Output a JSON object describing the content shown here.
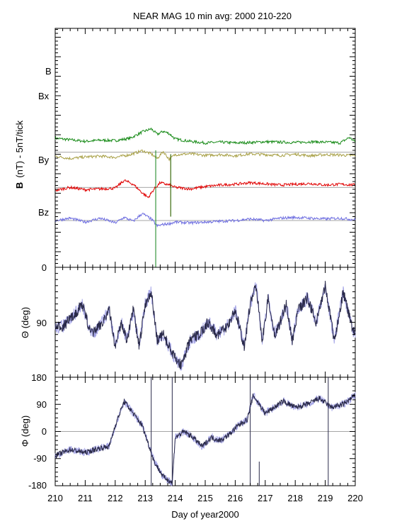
{
  "chart_data": [
    {
      "type": "line",
      "title": "NEAR MAG 10 min avg: 2000 210-220",
      "ylabel_bold": "B",
      "ylabel": "(nT) - 5nT/tick",
      "xlim": [
        210,
        220
      ],
      "y_tick_labels": [
        "0"
      ],
      "series": [
        {
          "name": "B",
          "color": "#1a8c1a",
          "x": [
            210,
            210.5,
            211,
            211.5,
            212,
            212.5,
            212.9,
            213.2,
            213.4,
            213.6,
            213.8,
            214,
            214.5,
            215,
            215.5,
            216,
            216.5,
            217,
            217.5,
            218,
            218.5,
            219,
            219.5,
            219.8,
            220
          ],
          "values": [
            0.6,
            0.2,
            -0.2,
            0.1,
            0.0,
            0.6,
            2.2,
            3.0,
            1.6,
            2.4,
            1.8,
            0.4,
            -0.2,
            -0.6,
            -0.4,
            -0.6,
            -0.5,
            -0.3,
            -0.4,
            -0.5,
            -0.3,
            -0.4,
            -0.6,
            0.8,
            -0.3
          ]
        },
        {
          "name": "Bx",
          "color": "#a8a046",
          "x": [
            210,
            210.5,
            211,
            211.5,
            212,
            212.5,
            212.9,
            213.2,
            213.4,
            213.6,
            213.8,
            214,
            214.5,
            215,
            215.5,
            216,
            216.5,
            217,
            217.5,
            218,
            218.5,
            219,
            219.5,
            220
          ],
          "values": [
            -1.0,
            -1.6,
            -1.2,
            -1.0,
            -1.3,
            -0.6,
            0.4,
            -0.4,
            -1.6,
            0.2,
            -1.8,
            -0.6,
            -0.4,
            -0.8,
            -0.6,
            -0.9,
            -0.4,
            -0.6,
            -0.8,
            -0.5,
            -0.9,
            -0.6,
            -0.7,
            -0.9
          ]
        },
        {
          "name": "By",
          "color": "#e00000",
          "x": [
            210,
            210.5,
            211,
            211.5,
            212,
            212.3,
            212.6,
            212.9,
            213.1,
            213.3,
            213.5,
            213.8,
            214,
            214.5,
            215,
            215.5,
            216,
            216.5,
            217,
            217.5,
            218,
            218.5,
            219,
            219.5,
            220
          ],
          "values": [
            -0.8,
            0.0,
            -0.6,
            -0.4,
            -0.2,
            1.8,
            0.8,
            -1.4,
            -2.6,
            -0.4,
            1.2,
            0.6,
            0.0,
            -0.4,
            0.2,
            0.6,
            0.8,
            1.2,
            0.9,
            0.6,
            0.8,
            1.0,
            0.6,
            0.8,
            0.6
          ]
        },
        {
          "name": "Bz",
          "color": "#6e6ee0",
          "x": [
            210,
            210.5,
            211,
            211.5,
            212,
            212.3,
            212.6,
            212.9,
            213.2,
            213.4,
            213.6,
            213.8,
            214,
            214.5,
            215,
            215.5,
            216,
            216.5,
            217,
            217.5,
            218,
            218.5,
            219,
            219.5,
            220
          ],
          "values": [
            0.0,
            0.6,
            -0.4,
            0.6,
            -0.6,
            0.8,
            -0.2,
            1.8,
            0.4,
            -1.4,
            -1.0,
            -0.8,
            -0.4,
            -0.6,
            -0.4,
            -0.2,
            0.0,
            0.4,
            0.0,
            0.6,
            0.8,
            0.6,
            0.4,
            0.6,
            0.2
          ]
        }
      ],
      "spikes": [
        {
          "x": 213.35,
          "y_from": -19,
          "y_to": 11,
          "color": "#6e6ee0"
        },
        {
          "x": 213.35,
          "y_from": -19,
          "y_to": 11,
          "color": "#1a8c1a"
        },
        {
          "x": 213.85,
          "y_from": -6,
          "y_to": 10,
          "color": "#e00000"
        },
        {
          "x": 213.85,
          "y_from": -6,
          "y_to": 10,
          "color": "#1a8c1a"
        }
      ]
    },
    {
      "type": "line",
      "ylabel": "Θ (deg)",
      "xlim": [
        210,
        220
      ],
      "ylim": [
        180,
        0
      ],
      "y_tick_labels": [
        "0",
        "90"
      ],
      "series": [
        {
          "name": "",
          "color": "#2a2a4a",
          "x": [
            210,
            210.3,
            210.6,
            210.9,
            211.2,
            211.5,
            211.8,
            212.0,
            212.2,
            212.4,
            212.6,
            212.8,
            213.0,
            213.2,
            213.4,
            213.6,
            213.8,
            214.0,
            214.2,
            214.5,
            214.8,
            215.1,
            215.4,
            215.7,
            216.0,
            216.3,
            216.5,
            216.7,
            216.9,
            217.1,
            217.3,
            217.5,
            217.7,
            217.9,
            218.1,
            218.4,
            218.7,
            219.0,
            219.3,
            219.6,
            219.9,
            220
          ],
          "values": [
            100,
            95,
            80,
            60,
            110,
            95,
            70,
            130,
            90,
            120,
            70,
            130,
            60,
            40,
            120,
            110,
            130,
            150,
            160,
            120,
            110,
            90,
            110,
            100,
            70,
            130,
            60,
            30,
            120,
            50,
            110,
            90,
            60,
            120,
            70,
            50,
            90,
            30,
            120,
            40,
            100,
            110
          ]
        }
      ]
    },
    {
      "type": "line",
      "ylabel": "Φ (deg)",
      "xlim": [
        210,
        220
      ],
      "ylim": [
        -180,
        180
      ],
      "y_tick_labels": [
        "180",
        "90",
        "0",
        "-90",
        "-180"
      ],
      "series": [
        {
          "name": "",
          "color": "#2a2a4a",
          "x": [
            210,
            210.5,
            211,
            211.5,
            211.8,
            212.0,
            212.3,
            212.6,
            212.9,
            213.1,
            213.3,
            213.6,
            213.9,
            214.0,
            214.3,
            214.6,
            214.9,
            215.2,
            215.5,
            215.8,
            216.1,
            216.4,
            216.6,
            216.8,
            217.0,
            217.3,
            217.6,
            218.0,
            218.4,
            218.8,
            219.2,
            219.6,
            220
          ],
          "values": [
            -80,
            -60,
            -70,
            -55,
            -50,
            20,
            100,
            60,
            20,
            -40,
            -100,
            -150,
            -170,
            -20,
            0,
            -20,
            -50,
            -20,
            -30,
            -10,
            20,
            40,
            120,
            90,
            60,
            80,
            100,
            80,
            90,
            110,
            80,
            90,
            120
          ]
        }
      ]
    }
  ],
  "x_tick_labels": [
    "210",
    "211",
    "212",
    "213",
    "214",
    "215",
    "216",
    "217",
    "218",
    "219",
    "220"
  ],
  "xlabel": "Day of year2000"
}
